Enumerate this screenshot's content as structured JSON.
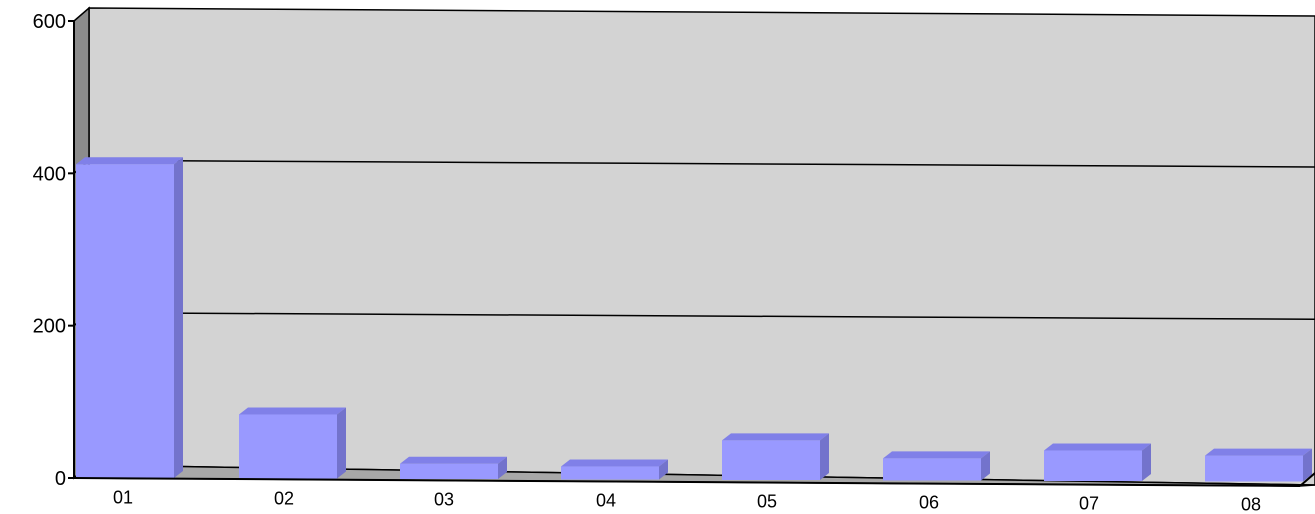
{
  "chart_data": {
    "type": "bar",
    "categories": [
      "01",
      "02",
      "03",
      "04",
      "05",
      "06",
      "07",
      "08"
    ],
    "values": [
      412,
      84,
      20,
      17,
      52,
      29,
      40,
      34
    ],
    "ylim": [
      0,
      600
    ],
    "yticks": [
      "0",
      "200",
      "400",
      "600"
    ],
    "grid": true,
    "style": "3d",
    "colors": {
      "bar_front": "#9999FF",
      "bar_top": "#8080E8",
      "bar_side": "#7373CC",
      "plot_back": "#D3D3D3",
      "left_wall": "#8C8C8C",
      "floor": "#A8A8A8"
    }
  }
}
